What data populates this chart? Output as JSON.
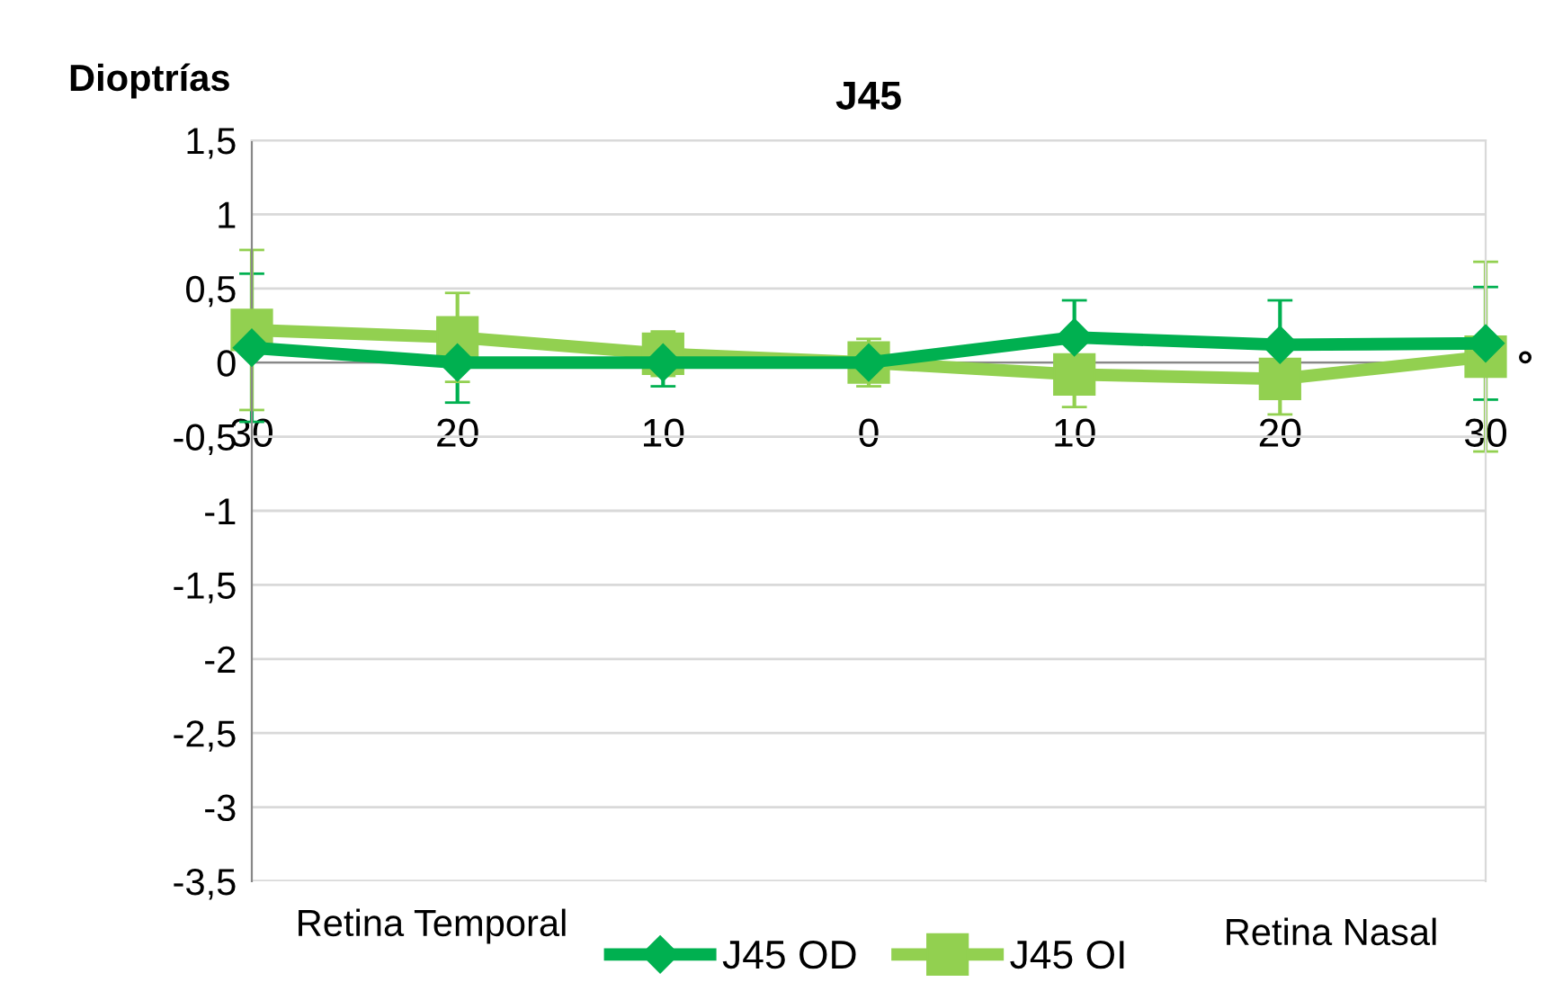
{
  "chart_data": {
    "type": "line",
    "title": "J45",
    "ylabel": "Dioptrías",
    "categories": [
      "30",
      "20",
      "10",
      "0",
      "10",
      "20",
      "30"
    ],
    "series": [
      {
        "name": "J45 OD",
        "color": "#00b050",
        "marker": "diamond",
        "values": [
          0.1,
          0.0,
          0.0,
          0.0,
          0.17,
          0.12,
          0.13
        ],
        "errors": [
          0.5,
          0.27,
          0.16,
          0.12,
          0.25,
          0.3,
          0.38
        ]
      },
      {
        "name": "J45 OI",
        "color": "#92d050",
        "marker": "square",
        "values": [
          0.22,
          0.17,
          0.06,
          0.0,
          -0.08,
          -0.11,
          0.04
        ],
        "errors": [
          0.54,
          0.3,
          0.15,
          0.16,
          0.22,
          0.24,
          0.64
        ]
      }
    ],
    "ylim": [
      -3.5,
      1.5
    ],
    "yticks": [
      {
        "value": -3.5,
        "label": "-3,5"
      },
      {
        "value": -3,
        "label": "-3"
      },
      {
        "value": -2.5,
        "label": "-2,5"
      },
      {
        "value": -2,
        "label": "-2"
      },
      {
        "value": -1.5,
        "label": "-1,5"
      },
      {
        "value": -1,
        "label": "-1"
      },
      {
        "value": -0.5,
        "label": "-0,5"
      },
      {
        "value": 0,
        "label": "0"
      },
      {
        "value": 0.5,
        "label": "0,5"
      },
      {
        "value": 1,
        "label": "1"
      },
      {
        "value": 1.5,
        "label": "1,5"
      }
    ],
    "grid": "y",
    "legend": "bottom",
    "line_style": "solid",
    "annotations": [
      "°",
      "Retina Temporal",
      "Retina Nasal"
    ]
  }
}
